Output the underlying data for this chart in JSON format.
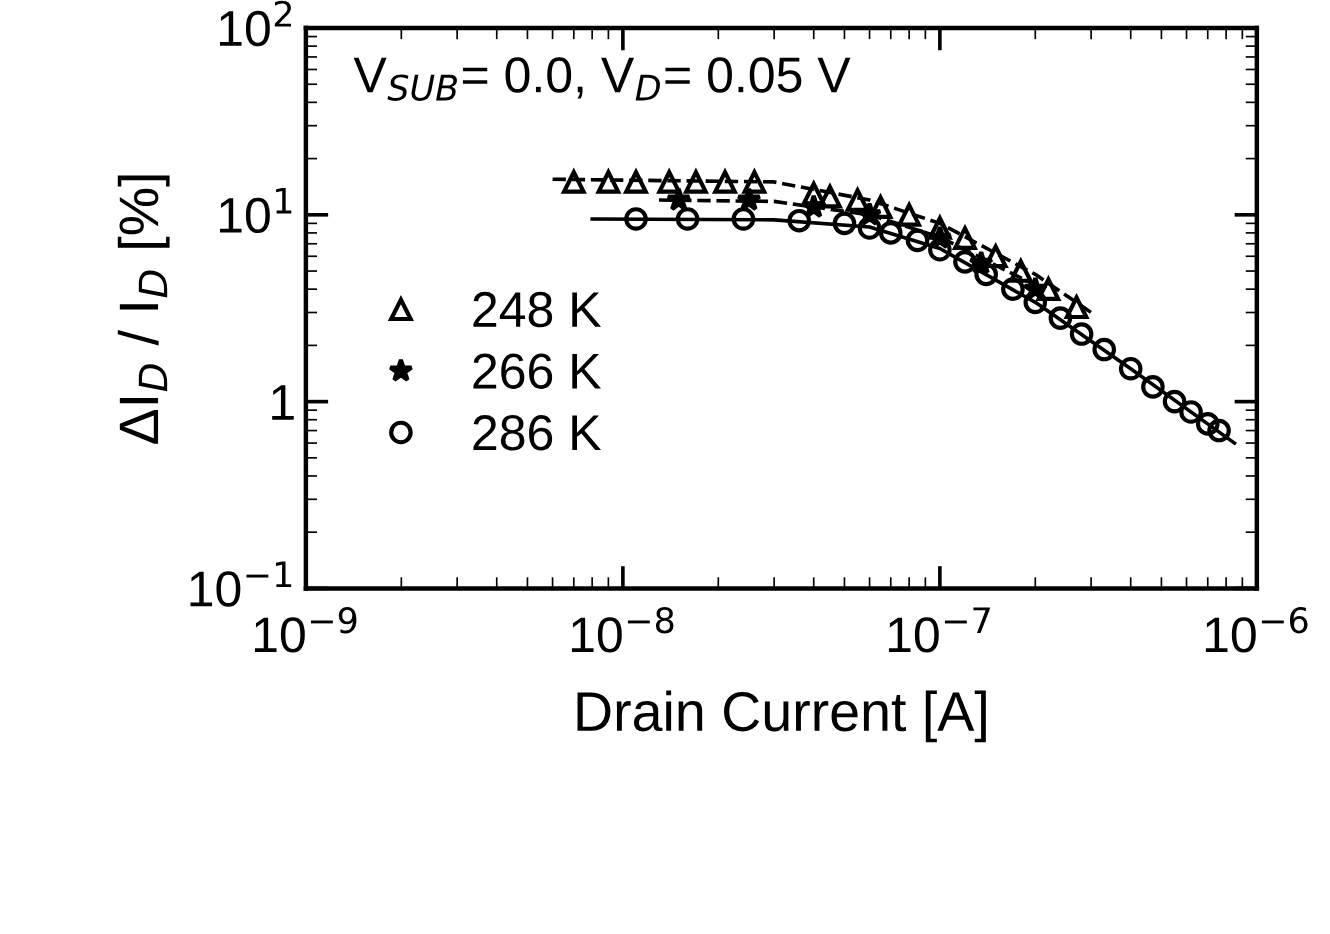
{
  "chart_data": {
    "type": "scatter",
    "xlabel": "Drain Current [A]",
    "ylabel": "ΔI$_{D}$ / I$_{D}$ [%]",
    "log": "xy",
    "xlim": [
      1e-09,
      1e-06
    ],
    "ylim": [
      0.1,
      100
    ],
    "xticks": [
      {
        "value": 1e-09,
        "label": "10$^{−9}$"
      },
      {
        "value": 1e-08,
        "label": "10$^{−8}$"
      },
      {
        "value": 1e-07,
        "label": "10$^{−7}$"
      },
      {
        "value": 1e-06,
        "label": "10$^{−6}$"
      }
    ],
    "yticks": [
      {
        "value": 0.1,
        "label": "10$^{−1}$"
      },
      1,
      {
        "value": 10,
        "label": "10$^{1}$"
      },
      {
        "value": 100,
        "label": "10$^{2}$"
      }
    ],
    "grid": false,
    "legend": "left",
    "annotations": [
      "V$_{SUB}$= 0.0, V$_{D}$= 0.05 V"
    ],
    "series": [
      {
        "name": "248 K",
        "color": "#000000",
        "marker": "triangle",
        "x": [
          7e-09,
          9e-09,
          1.1e-08,
          1.4e-08,
          1.7e-08,
          2.1e-08,
          2.6e-08,
          4e-08,
          4.5e-08,
          5.5e-08,
          6.5e-08,
          8e-08,
          1e-07,
          1.2e-07,
          1.5e-07,
          1.8e-07,
          2.2e-07,
          2.7e-07
        ],
        "values": [
          15,
          15,
          15,
          15,
          15,
          15,
          15,
          13,
          12.5,
          12,
          11,
          10,
          8.5,
          7.5,
          6,
          5,
          4,
          3.2
        ]
      },
      {
        "name": "266 K",
        "color": "#000000",
        "marker": "star",
        "x": [
          1.5e-08,
          2.5e-08,
          4e-08,
          6e-08,
          1e-07,
          1.35e-07,
          2e-07
        ],
        "values": [
          12,
          12,
          11,
          10,
          7.5,
          5.5,
          4
        ]
      },
      {
        "name": "286 K",
        "color": "#000000",
        "marker": "circle",
        "x": [
          1.1e-08,
          1.6e-08,
          2.4e-08,
          3.6e-08,
          5e-08,
          6e-08,
          7e-08,
          8.5e-08,
          1e-07,
          1.2e-07,
          1.4e-07,
          1.7e-07,
          2e-07,
          2.4e-07,
          2.8e-07,
          3.3e-07,
          4e-07,
          4.7e-07,
          5.5e-07,
          6.2e-07,
          7e-07,
          7.6e-07
        ],
        "values": [
          9.5,
          9.5,
          9.5,
          9.3,
          9,
          8.5,
          8,
          7.3,
          6.5,
          5.6,
          4.8,
          4,
          3.4,
          2.8,
          2.3,
          1.9,
          1.5,
          1.2,
          1.0,
          0.88,
          0.76,
          0.7
        ]
      },
      {
        "type": "line",
        "line_style": "dashed",
        "color": "#000000",
        "x": [
          6e-09,
          3e-08,
          6e-08,
          1e-07,
          2e-07,
          3e-07
        ],
        "values": [
          15.5,
          15,
          12,
          9,
          4.8,
          3
        ]
      },
      {
        "type": "line",
        "line_style": "dashed",
        "color": "#000000",
        "x": [
          1.3e-08,
          3e-08,
          6e-08,
          1e-07,
          2e-07
        ],
        "values": [
          12,
          11.8,
          10,
          7.6,
          4.2
        ]
      },
      {
        "type": "line",
        "line_style": "solid",
        "color": "#000000",
        "x": [
          8e-09,
          3e-08,
          6e-08,
          1e-07,
          2e-07,
          4e-07,
          8.5e-07
        ],
        "values": [
          9.5,
          9.4,
          8.6,
          6.6,
          3.4,
          1.5,
          0.6
        ]
      }
    ]
  }
}
